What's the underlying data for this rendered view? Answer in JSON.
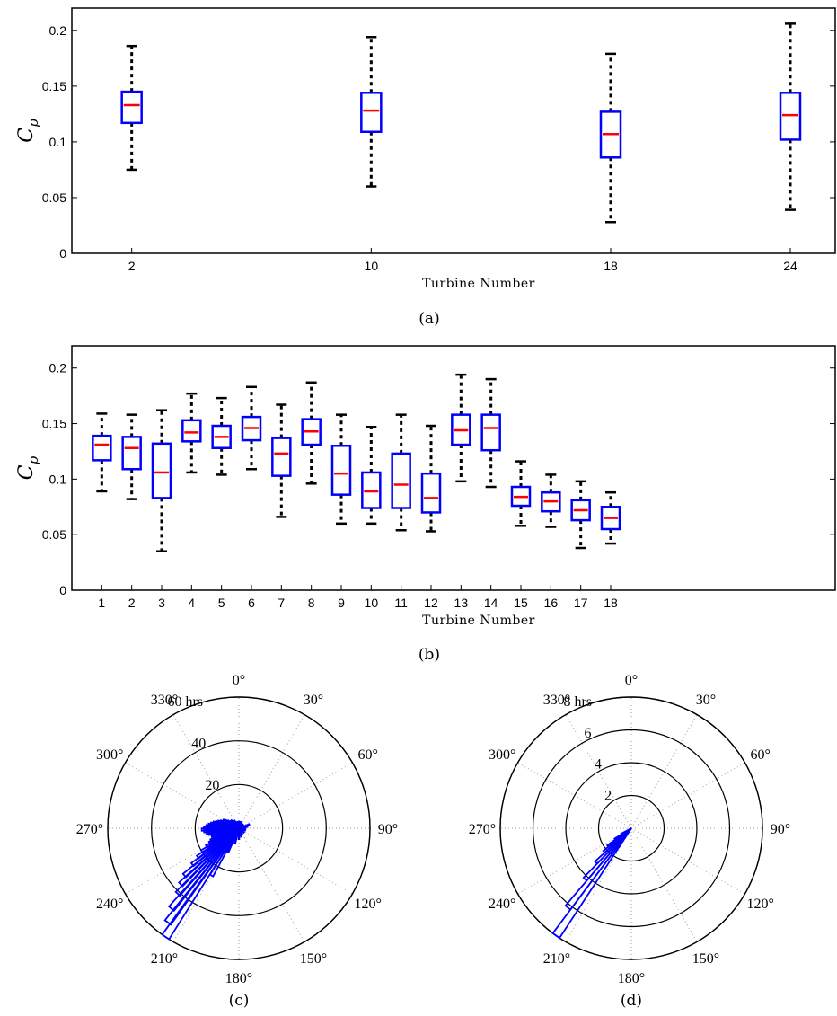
{
  "chart_data": [
    {
      "panel": "a",
      "type": "box",
      "caption": "(a)",
      "xlabel": "Turbine Number",
      "ylabel": "C",
      "ylabel_sub": "p",
      "ylim": [
        0,
        0.22
      ],
      "yticks": [
        0,
        0.05,
        0.1,
        0.15,
        0.2
      ],
      "ytick_labels": [
        "0",
        "0.05",
        "0.1",
        "0.15",
        "0.2"
      ],
      "x_range": [
        0,
        25.5
      ],
      "categories": [
        "2",
        "10",
        "18",
        "24"
      ],
      "boxes": [
        {
          "x": 2,
          "label": "2",
          "whisker_low": 0.075,
          "q1": 0.117,
          "median": 0.133,
          "q3": 0.145,
          "whisker_high": 0.186
        },
        {
          "x": 10,
          "label": "10",
          "whisker_low": 0.06,
          "q1": 0.109,
          "median": 0.128,
          "q3": 0.144,
          "whisker_high": 0.194
        },
        {
          "x": 18,
          "label": "18",
          "whisker_low": 0.028,
          "q1": 0.086,
          "median": 0.107,
          "q3": 0.127,
          "whisker_high": 0.179
        },
        {
          "x": 24,
          "label": "24",
          "whisker_low": 0.039,
          "q1": 0.102,
          "median": 0.124,
          "q3": 0.144,
          "whisker_high": 0.206
        }
      ],
      "box_color": "#0000ff",
      "median_color": "#ff0000",
      "whisker_color": "#000000"
    },
    {
      "panel": "b",
      "type": "box",
      "caption": "(b)",
      "xlabel": "Turbine Number",
      "ylabel": "C",
      "ylabel_sub": "p",
      "ylim": [
        0,
        0.22
      ],
      "yticks": [
        0,
        0.05,
        0.1,
        0.15,
        0.2
      ],
      "ytick_labels": [
        "0",
        "0.05",
        "0.1",
        "0.15",
        "0.2"
      ],
      "x_range": [
        0,
        25.5
      ],
      "categories": [
        "1",
        "2",
        "3",
        "4",
        "5",
        "6",
        "7",
        "8",
        "9",
        "10",
        "11",
        "12",
        "13",
        "14",
        "15",
        "16",
        "17",
        "18"
      ],
      "boxes": [
        {
          "x": 1,
          "label": "1",
          "whisker_low": 0.089,
          "q1": 0.117,
          "median": 0.131,
          "q3": 0.139,
          "whisker_high": 0.159
        },
        {
          "x": 2,
          "label": "2",
          "whisker_low": 0.082,
          "q1": 0.109,
          "median": 0.128,
          "q3": 0.138,
          "whisker_high": 0.158
        },
        {
          "x": 3,
          "label": "3",
          "whisker_low": 0.035,
          "q1": 0.083,
          "median": 0.106,
          "q3": 0.132,
          "whisker_high": 0.162
        },
        {
          "x": 4,
          "label": "4",
          "whisker_low": 0.106,
          "q1": 0.134,
          "median": 0.142,
          "q3": 0.153,
          "whisker_high": 0.177
        },
        {
          "x": 5,
          "label": "5",
          "whisker_low": 0.104,
          "q1": 0.128,
          "median": 0.138,
          "q3": 0.148,
          "whisker_high": 0.173
        },
        {
          "x": 6,
          "label": "6",
          "whisker_low": 0.109,
          "q1": 0.135,
          "median": 0.146,
          "q3": 0.156,
          "whisker_high": 0.183
        },
        {
          "x": 7,
          "label": "7",
          "whisker_low": 0.066,
          "q1": 0.103,
          "median": 0.123,
          "q3": 0.137,
          "whisker_high": 0.167
        },
        {
          "x": 8,
          "label": "8",
          "whisker_low": 0.096,
          "q1": 0.131,
          "median": 0.143,
          "q3": 0.154,
          "whisker_high": 0.187
        },
        {
          "x": 9,
          "label": "9",
          "whisker_low": 0.06,
          "q1": 0.086,
          "median": 0.105,
          "q3": 0.13,
          "whisker_high": 0.158
        },
        {
          "x": 10,
          "label": "10",
          "whisker_low": 0.06,
          "q1": 0.074,
          "median": 0.089,
          "q3": 0.106,
          "whisker_high": 0.147
        },
        {
          "x": 11,
          "label": "11",
          "whisker_low": 0.054,
          "q1": 0.074,
          "median": 0.095,
          "q3": 0.123,
          "whisker_high": 0.158
        },
        {
          "x": 12,
          "label": "12",
          "whisker_low": 0.053,
          "q1": 0.07,
          "median": 0.083,
          "q3": 0.105,
          "whisker_high": 0.148
        },
        {
          "x": 13,
          "label": "13",
          "whisker_low": 0.098,
          "q1": 0.131,
          "median": 0.144,
          "q3": 0.158,
          "whisker_high": 0.194
        },
        {
          "x": 14,
          "label": "14",
          "whisker_low": 0.093,
          "q1": 0.126,
          "median": 0.146,
          "q3": 0.158,
          "whisker_high": 0.19
        },
        {
          "x": 15,
          "label": "15",
          "whisker_low": 0.058,
          "q1": 0.076,
          "median": 0.084,
          "q3": 0.093,
          "whisker_high": 0.116
        },
        {
          "x": 16,
          "label": "16",
          "whisker_low": 0.057,
          "q1": 0.071,
          "median": 0.08,
          "q3": 0.088,
          "whisker_high": 0.104
        },
        {
          "x": 17,
          "label": "17",
          "whisker_low": 0.038,
          "q1": 0.063,
          "median": 0.072,
          "q3": 0.081,
          "whisker_high": 0.098
        },
        {
          "x": 18,
          "label": "18",
          "whisker_low": 0.042,
          "q1": 0.055,
          "median": 0.065,
          "q3": 0.075,
          "whisker_high": 0.088
        }
      ],
      "box_color": "#0000ff",
      "median_color": "#ff0000",
      "whisker_color": "#000000"
    },
    {
      "panel": "c",
      "type": "polar-histogram",
      "caption": "(c)",
      "r_max": 60,
      "r_rings": [
        20,
        40,
        60
      ],
      "r_labels": [
        "20",
        "40",
        "60 hrs"
      ],
      "angle_labels": [
        "0°",
        "30°",
        "60°",
        "90°",
        "120°",
        "150°",
        "180°",
        "210°",
        "240°",
        "270°",
        "300°",
        "330°"
      ],
      "bin_width_deg": 3.6,
      "bins": [
        {
          "angle": 214,
          "value": 60
        },
        {
          "angle": 217,
          "value": 54
        },
        {
          "angle": 220,
          "value": 48
        },
        {
          "angle": 223,
          "value": 41
        },
        {
          "angle": 226,
          "value": 37
        },
        {
          "angle": 229,
          "value": 33
        },
        {
          "angle": 232,
          "value": 27
        },
        {
          "angle": 235,
          "value": 23
        },
        {
          "angle": 238,
          "value": 20
        },
        {
          "angle": 241,
          "value": 17
        },
        {
          "angle": 244,
          "value": 15
        },
        {
          "angle": 247,
          "value": 14
        },
        {
          "angle": 250,
          "value": 13
        },
        {
          "angle": 253,
          "value": 12
        },
        {
          "angle": 256,
          "value": 13
        },
        {
          "angle": 259,
          "value": 14
        },
        {
          "angle": 262,
          "value": 15
        },
        {
          "angle": 265,
          "value": 16
        },
        {
          "angle": 268,
          "value": 17
        },
        {
          "angle": 271,
          "value": 16
        },
        {
          "angle": 274,
          "value": 15
        },
        {
          "angle": 277,
          "value": 14
        },
        {
          "angle": 280,
          "value": 13
        },
        {
          "angle": 283,
          "value": 12
        },
        {
          "angle": 286,
          "value": 11
        },
        {
          "angle": 289,
          "value": 10
        },
        {
          "angle": 292,
          "value": 9
        },
        {
          "angle": 295,
          "value": 8
        },
        {
          "angle": 298,
          "value": 8
        },
        {
          "angle": 301,
          "value": 7
        },
        {
          "angle": 305,
          "value": 6
        },
        {
          "angle": 310,
          "value": 5
        },
        {
          "angle": 316,
          "value": 5
        },
        {
          "angle": 322,
          "value": 4
        },
        {
          "angle": 330,
          "value": 4
        },
        {
          "angle": 340,
          "value": 3
        },
        {
          "angle": 350,
          "value": 3
        },
        {
          "angle": 0,
          "value": 3
        },
        {
          "angle": 10,
          "value": 3
        },
        {
          "angle": 20,
          "value": 3
        },
        {
          "angle": 30,
          "value": 2.5
        },
        {
          "angle": 45,
          "value": 2.5
        },
        {
          "angle": 60,
          "value": 2.5
        },
        {
          "angle": 70,
          "value": 5
        },
        {
          "angle": 80,
          "value": 4
        },
        {
          "angle": 95,
          "value": 3
        },
        {
          "angle": 110,
          "value": 3
        },
        {
          "angle": 130,
          "value": 3
        },
        {
          "angle": 150,
          "value": 3
        },
        {
          "angle": 165,
          "value": 4
        },
        {
          "angle": 180,
          "value": 5
        },
        {
          "angle": 195,
          "value": 7
        },
        {
          "angle": 205,
          "value": 12
        },
        {
          "angle": 210,
          "value": 25
        }
      ],
      "bar_color": "#0000ff"
    },
    {
      "panel": "d",
      "type": "polar-histogram",
      "caption": "(d)",
      "r_max": 8,
      "r_rings": [
        2,
        4,
        6,
        8
      ],
      "r_labels": [
        "2",
        "4",
        "6",
        "8 hrs"
      ],
      "angle_labels": [
        "0°",
        "30°",
        "60°",
        "90°",
        "120°",
        "150°",
        "180°",
        "210°",
        "240°",
        "270°",
        "300°",
        "330°"
      ],
      "bin_width_deg": 3.6,
      "bins": [
        {
          "angle": 215,
          "value": 8
        },
        {
          "angle": 218.6,
          "value": 6.2
        },
        {
          "angle": 222.2,
          "value": 4.2
        },
        {
          "angle": 225.8,
          "value": 3.0
        },
        {
          "angle": 229.4,
          "value": 2.2
        },
        {
          "angle": 233,
          "value": 1.8
        },
        {
          "angle": 236.6,
          "value": 1.2
        },
        {
          "angle": 240.2,
          "value": 0.7
        }
      ],
      "bar_color": "#0000ff"
    }
  ]
}
